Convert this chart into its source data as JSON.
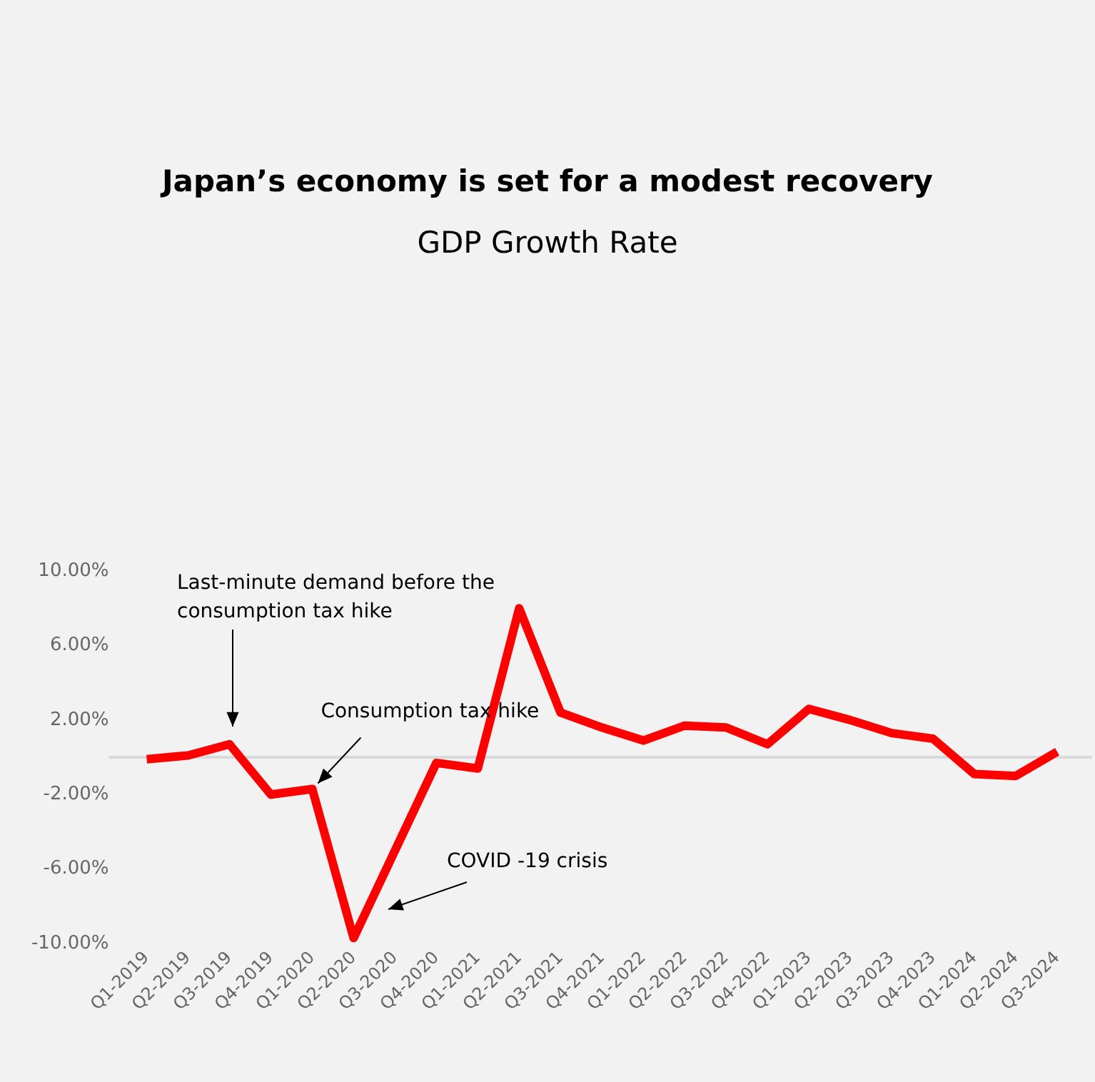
{
  "chart_data": {
    "type": "line",
    "title": "Japan’s economy is set for a modest recovery",
    "subtitle": "GDP Growth Rate",
    "categories": [
      "Q1-2019",
      "Q2-2019",
      "Q3-2019",
      "Q4-2019",
      "Q1-2020",
      "Q2-2020",
      "Q3-2020",
      "Q4-2020",
      "Q1-2021",
      "Q2-2021",
      "Q3-2021",
      "Q4-2021",
      "Q1-2022",
      "Q2-2022",
      "Q3-2022",
      "Q4-2022",
      "Q1-2023",
      "Q2-2023",
      "Q3-2023",
      "Q4-2023",
      "Q1-2024",
      "Q2-2024",
      "Q3-2024"
    ],
    "series": [
      {
        "color": "#ff0000",
        "values": [
          -0.1,
          0.1,
          0.7,
          -2.0,
          -1.7,
          -9.7,
          -5.0,
          -0.3,
          -0.6,
          8.0,
          2.4,
          1.6,
          0.9,
          1.7,
          1.6,
          0.7,
          2.6,
          2.0,
          1.3,
          1.0,
          -0.9,
          -1.0,
          0.3
        ]
      }
    ],
    "ylim": [
      -10,
      10
    ],
    "yticks": [
      {
        "value": -10,
        "label": "-10.00%"
      },
      {
        "value": -6,
        "label": "-6.00%"
      },
      {
        "value": -2,
        "label": "-2.00%"
      },
      {
        "value": 2,
        "label": "2.00%"
      },
      {
        "value": 6,
        "label": "6.00%"
      },
      {
        "value": 10,
        "label": "10.00%"
      }
    ],
    "ref_lines": [
      {
        "axis": "y",
        "value": 0,
        "color": "#d9d9d9"
      }
    ],
    "annotations": [
      "Last-minute demand before the consumption tax hike",
      {
        "text": "Consumption tax hike",
        "x": "Q1-2020",
        "y": -1.7
      },
      "COVID -19 crisis"
    ],
    "grid": false,
    "legend": false,
    "marker": "none",
    "line_style": "solid"
  }
}
